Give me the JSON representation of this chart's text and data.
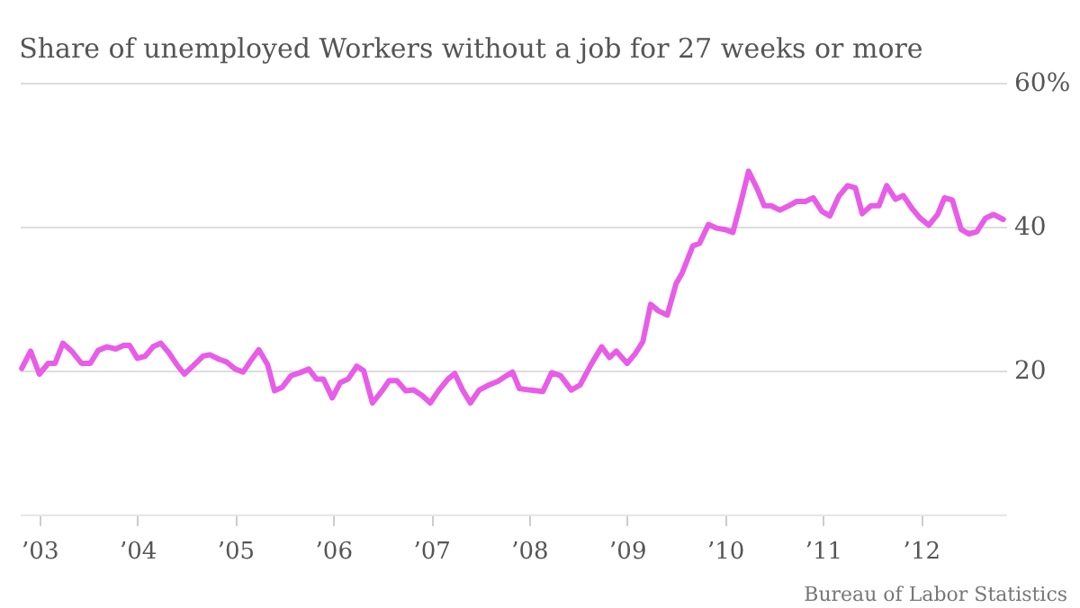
{
  "chart_data": {
    "type": "line",
    "title": "Share of unemployed Workers without a job for 27 weeks or more",
    "annotations": [
      "Bureau of Labor Statistics"
    ],
    "x": [
      2002.82,
      2002.91,
      2003.0,
      2003.09,
      2003.16,
      2003.24,
      2003.33,
      2003.43,
      2003.52,
      2003.6,
      2003.69,
      2003.78,
      2003.86,
      2003.92,
      2004.0,
      2004.08,
      2004.16,
      2004.24,
      2004.32,
      2004.41,
      2004.48,
      2004.58,
      2004.67,
      2004.74,
      2004.83,
      2004.91,
      2005.0,
      2005.08,
      2005.16,
      2005.24,
      2005.33,
      2005.4,
      2005.48,
      2005.57,
      2005.66,
      2005.75,
      2005.83,
      2005.9,
      2005.99,
      2006.07,
      2006.15,
      2006.24,
      2006.31,
      2006.4,
      2006.5,
      2006.57,
      2006.65,
      2006.74,
      2006.82,
      2006.91,
      2006.99,
      2007.08,
      2007.17,
      2007.24,
      2007.32,
      2007.4,
      2007.49,
      2007.59,
      2007.68,
      2007.77,
      2007.83,
      2007.9,
      2008.0,
      2008.14,
      2008.23,
      2008.32,
      2008.43,
      2008.52,
      2008.63,
      2008.74,
      2008.82,
      2008.89,
      2009.0,
      2009.08,
      2009.16,
      2009.24,
      2009.32,
      2009.41,
      2009.5,
      2009.56,
      2009.67,
      2009.74,
      2009.83,
      2009.91,
      2010.0,
      2010.08,
      2010.16,
      2010.24,
      2010.33,
      2010.4,
      2010.47,
      2010.56,
      2010.65,
      2010.73,
      2010.82,
      2010.9,
      2010.99,
      2011.07,
      2011.16,
      2011.25,
      2011.33,
      2011.4,
      2011.49,
      2011.57,
      2011.65,
      2011.74,
      2011.82,
      2011.91,
      2011.99,
      2012.08,
      2012.17,
      2012.24,
      2012.32,
      2012.41,
      2012.49,
      2012.57,
      2012.66,
      2012.74,
      2012.84
    ],
    "series": [
      {
        "color": "#e85ce8",
        "values": [
          20.3,
          22.7,
          19.5,
          21,
          21,
          23.8,
          22.7,
          21,
          21,
          22.8,
          23.3,
          23,
          23.5,
          23.5,
          21.7,
          22,
          23.3,
          23.8,
          22.5,
          20.7,
          19.5,
          20.8,
          22,
          22.2,
          21.6,
          21.2,
          20.2,
          19.8,
          21.4,
          22.9,
          20.8,
          17.2,
          17.7,
          19.3,
          19.7,
          20.2,
          18.8,
          18.8,
          16.2,
          18.3,
          18.8,
          20.6,
          20,
          15.5,
          17.2,
          18.6,
          18.6,
          17.2,
          17.3,
          16.5,
          15.5,
          17.3,
          18.8,
          19.6,
          17.3,
          15.5,
          17.3,
          18,
          18.5,
          19.3,
          19.8,
          17.5,
          17.3,
          17.1,
          19.7,
          19.3,
          17.3,
          18,
          20.8,
          23.3,
          21.8,
          22.7,
          21,
          22.3,
          24,
          29.2,
          28.3,
          27.7,
          32.1,
          33.5,
          37.3,
          37.7,
          40.3,
          39.8,
          39.6,
          39.2,
          43.3,
          47.7,
          45.2,
          42.9,
          42.9,
          42.3,
          42.9,
          43.5,
          43.5,
          44,
          42.1,
          41.5,
          44.2,
          45.7,
          45.4,
          41.8,
          42.9,
          42.9,
          45.7,
          43.8,
          44.3,
          42.5,
          41.2,
          40.2,
          41.7,
          44,
          43.7,
          39.6,
          39,
          39.3,
          41.2,
          41.7,
          41
        ]
      }
    ],
    "xlim": [
      2002.8,
      2012.87
    ],
    "xticks": [
      {
        "value": 2003,
        "label": "’03"
      },
      {
        "value": 2004,
        "label": "’04"
      },
      {
        "value": 2005,
        "label": "’05"
      },
      {
        "value": 2006,
        "label": "’06"
      },
      {
        "value": 2007,
        "label": "’07"
      },
      {
        "value": 2008,
        "label": "’08"
      },
      {
        "value": 2009,
        "label": "’09"
      },
      {
        "value": 2010,
        "label": "’10"
      },
      {
        "value": 2011,
        "label": "’11"
      },
      {
        "value": 2012,
        "label": "’12"
      }
    ],
    "ylim": [
      0,
      60
    ],
    "yticks": [
      20,
      40,
      {
        "value": 60,
        "label": "60%"
      }
    ],
    "grid": "y",
    "line_style": "solid",
    "marker": "none"
  }
}
